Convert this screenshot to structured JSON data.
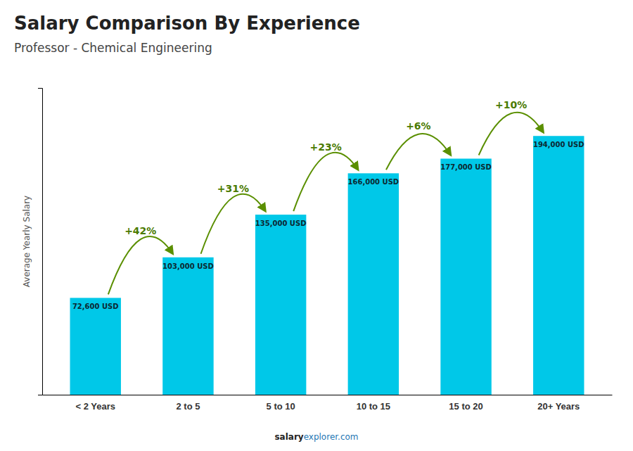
{
  "chart_data": {
    "type": "bar",
    "title": "Salary Comparison By Experience",
    "subtitle": "Professor - Chemical Engineering",
    "ylabel": "Average Yearly Salary",
    "categories": [
      "< 2 Years",
      "2 to 5",
      "5 to 10",
      "10 to 15",
      "15 to 20",
      "20+ Years"
    ],
    "values": [
      72600,
      103000,
      135000,
      166000,
      177000,
      194000
    ],
    "value_labels": [
      "72,600 USD",
      "103,000 USD",
      "135,000 USD",
      "166,000 USD",
      "177,000 USD",
      "194,000 USD"
    ],
    "data_labels": true,
    "color": "#00c8e8",
    "ylim": [
      0,
      230000
    ],
    "yticks": [],
    "tick_labels": "x",
    "grid": false,
    "annotations": [
      "+42%",
      "+31%",
      "+23%",
      "+6%",
      "+10%"
    ],
    "footer": [
      "salary",
      "explorer.com"
    ]
  }
}
